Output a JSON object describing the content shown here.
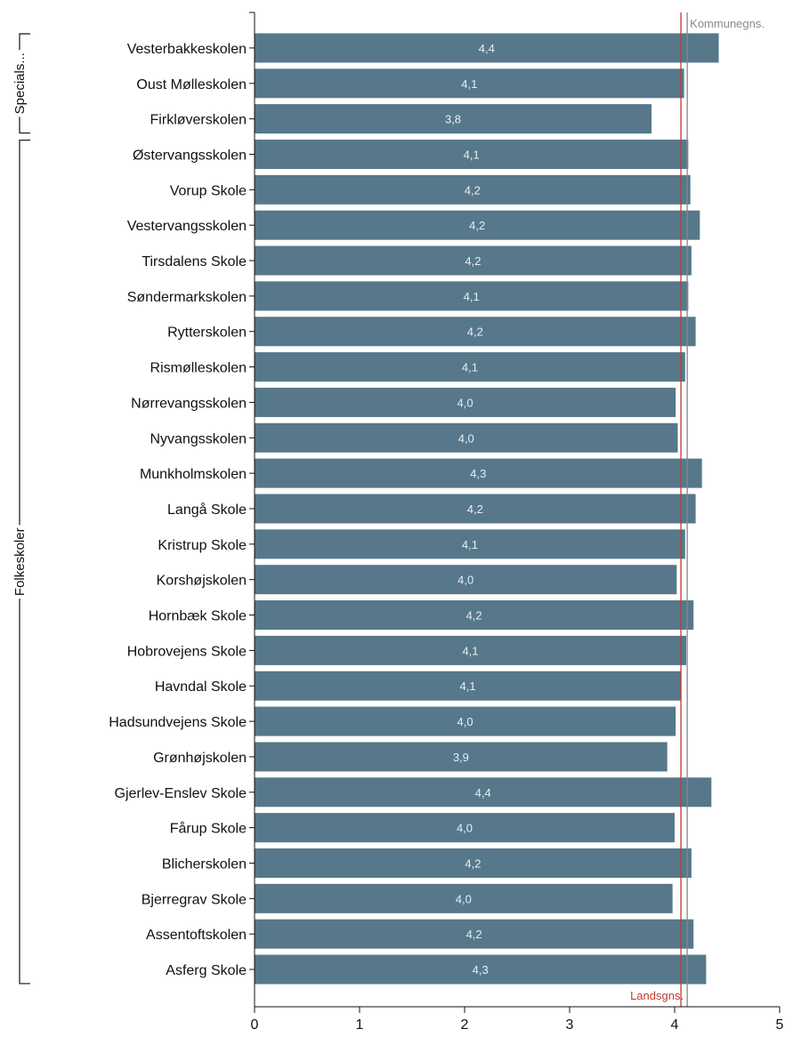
{
  "chart_data": {
    "type": "bar",
    "orientation": "horizontal",
    "categories": [
      "Vesterbakkeskolen",
      "Oust Mølleskolen",
      "Firkløverskolen",
      "Østervangsskolen",
      "Vorup Skole",
      "Vestervangsskolen",
      "Tirsdalens Skole",
      "Søndermarkskolen",
      "Rytterskolen",
      "Rismølleskolen",
      "Nørrevangsskolen",
      "Nyvangsskolen",
      "Munkholmskolen",
      "Langå Skole",
      "Kristrup Skole",
      "Korshøjskolen",
      "Hornbæk Skole",
      "Hobrovejens Skole",
      "Havndal Skole",
      "Hadsundvejens Skole",
      "Grønhøjskolen",
      "Gjerlev-Enslev Skole",
      "Fårup Skole",
      "Blicherskolen",
      "Bjerregrav Skole",
      "Assentoftskolen",
      "Asferg Skole"
    ],
    "values": [
      4.42,
      4.09,
      3.78,
      4.13,
      4.15,
      4.24,
      4.16,
      4.13,
      4.2,
      4.1,
      4.01,
      4.03,
      4.26,
      4.2,
      4.1,
      4.02,
      4.18,
      4.11,
      4.06,
      4.01,
      3.93,
      4.35,
      4.0,
      4.16,
      3.98,
      4.18,
      4.3
    ],
    "value_labels": [
      "4,4",
      "4,1",
      "3,8",
      "4,1",
      "4,2",
      "4,2",
      "4,2",
      "4,1",
      "4,2",
      "4,1",
      "4,0",
      "4,0",
      "4,3",
      "4,2",
      "4,1",
      "4,0",
      "4,2",
      "4,1",
      "4,1",
      "4,0",
      "3,9",
      "4,4",
      "4,0",
      "4,2",
      "4,0",
      "4,2",
      "4,3"
    ],
    "groups": [
      {
        "label": "Specials...",
        "start": 0,
        "end": 2
      },
      {
        "label": "Folkeskoler",
        "start": 3,
        "end": 26
      }
    ],
    "xlim": [
      0,
      5
    ],
    "xticks": [
      0,
      1,
      2,
      3,
      4,
      5
    ],
    "xtick_labels": [
      "0",
      "1",
      "2",
      "3",
      "4",
      "5"
    ],
    "reference_lines": [
      {
        "label": "Kommunegns.",
        "value": 4.12,
        "color": "#888888"
      },
      {
        "label": "Landsgns.",
        "value": 4.06,
        "color": "#c0392b"
      }
    ],
    "bar_color": "#56788a",
    "title": "",
    "xlabel": "",
    "ylabel": "",
    "grid": false
  }
}
